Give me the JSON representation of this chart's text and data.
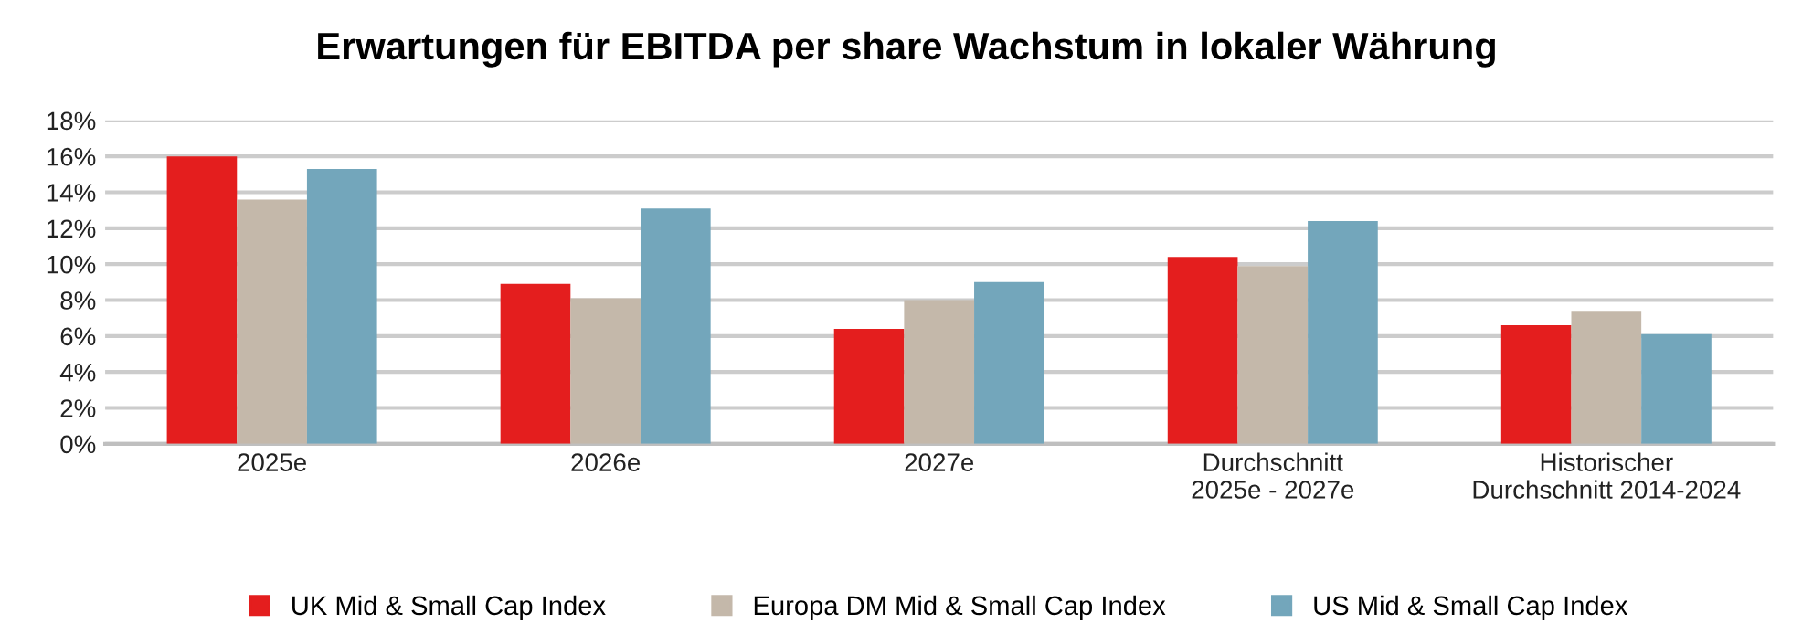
{
  "chart_data": {
    "type": "bar",
    "title": "Erwartungen für EBITDA per share Wachstum in lokaler Währung",
    "categories": [
      "2025e",
      "2026e",
      "2027e",
      "Durchschnitt\n2025e - 2027e",
      "Historischer\nDurchschnitt 2014-2024"
    ],
    "series": [
      {
        "name": "UK Mid & Small Cap Index",
        "color": "#e41e1e",
        "values": [
          16.0,
          8.9,
          6.4,
          10.4,
          6.6
        ]
      },
      {
        "name": "Europa DM Mid & Small Cap Index",
        "color": "#c4b8aa",
        "values": [
          13.6,
          8.1,
          8.0,
          9.9,
          7.4
        ]
      },
      {
        "name": "US Mid & Small Cap Index",
        "color": "#73a6bb",
        "values": [
          15.3,
          13.1,
          9.0,
          12.4,
          6.1
        ]
      }
    ],
    "ylim": [
      0,
      18
    ],
    "yticks": [
      {
        "value": 0,
        "label": "0%"
      },
      {
        "value": 2,
        "label": "2%"
      },
      {
        "value": 4,
        "label": "4%"
      },
      {
        "value": 6,
        "label": "6%"
      },
      {
        "value": 8,
        "label": "8%"
      },
      {
        "value": 10,
        "label": "10%"
      },
      {
        "value": 12,
        "label": "12%"
      },
      {
        "value": 14,
        "label": "14%"
      },
      {
        "value": 16,
        "label": "16%"
      },
      {
        "value": 18,
        "label": "18%"
      }
    ],
    "grid": "y",
    "legend": "bottom"
  }
}
